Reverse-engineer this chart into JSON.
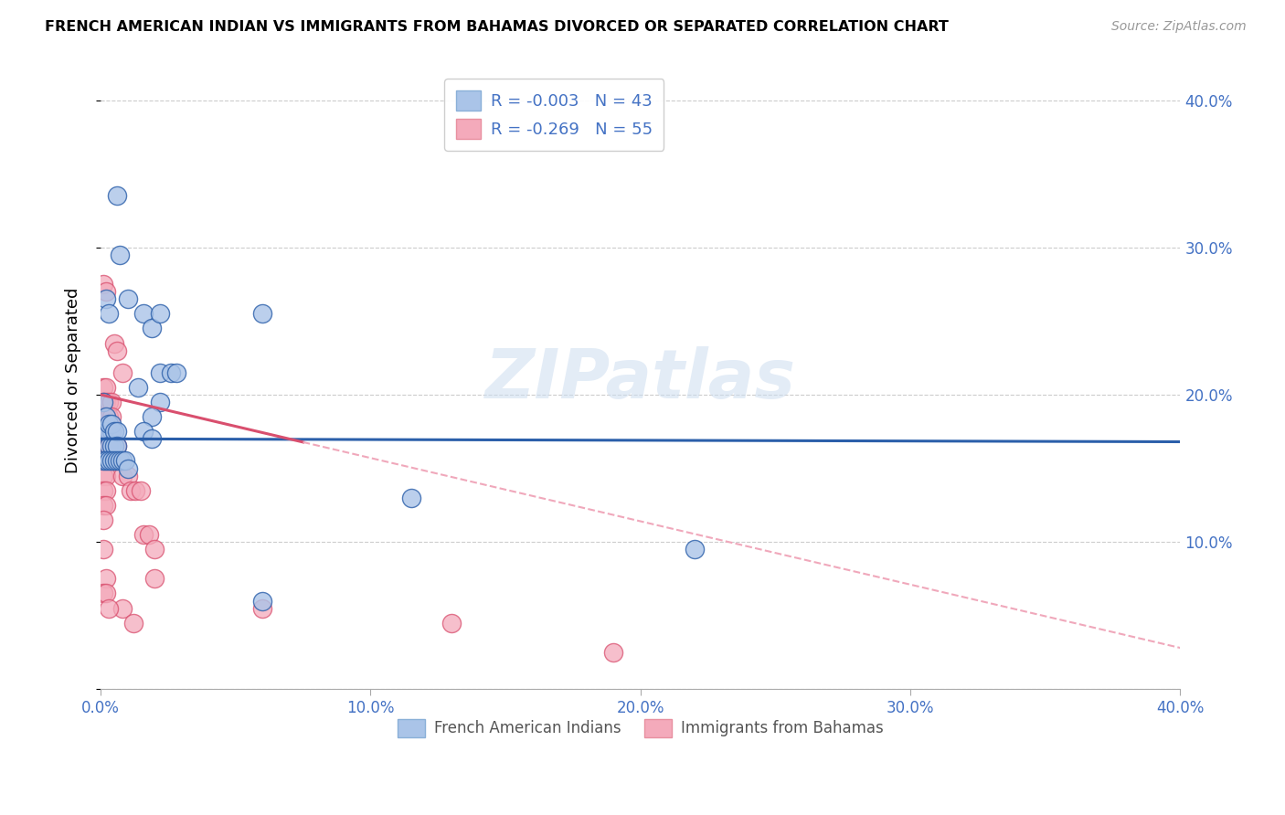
{
  "title": "FRENCH AMERICAN INDIAN VS IMMIGRANTS FROM BAHAMAS DIVORCED OR SEPARATED CORRELATION CHART",
  "source": "Source: ZipAtlas.com",
  "ylabel": "Divorced or Separated",
  "legend_label1": "French American Indians",
  "legend_label2": "Immigrants from Bahamas",
  "r1": "-0.003",
  "n1": "43",
  "r2": "-0.269",
  "n2": "55",
  "xlim": [
    0.0,
    0.4
  ],
  "ylim": [
    0.0,
    0.42
  ],
  "color_blue": "#aac4e8",
  "color_pink": "#f4aabb",
  "line_blue": "#2b5faa",
  "line_pink": "#d94f6e",
  "line_pink_dash": "#f0a8bb",
  "watermark": "ZIPatlas",
  "blue_scatter": [
    [
      0.006,
      0.335
    ],
    [
      0.007,
      0.295
    ],
    [
      0.01,
      0.265
    ],
    [
      0.002,
      0.265
    ],
    [
      0.003,
      0.255
    ],
    [
      0.016,
      0.255
    ],
    [
      0.019,
      0.245
    ],
    [
      0.022,
      0.255
    ],
    [
      0.06,
      0.255
    ],
    [
      0.022,
      0.215
    ],
    [
      0.026,
      0.215
    ],
    [
      0.028,
      0.215
    ],
    [
      0.014,
      0.205
    ],
    [
      0.022,
      0.195
    ],
    [
      0.019,
      0.185
    ],
    [
      0.016,
      0.175
    ],
    [
      0.003,
      0.175
    ],
    [
      0.004,
      0.175
    ],
    [
      0.019,
      0.17
    ],
    [
      0.001,
      0.195
    ],
    [
      0.001,
      0.175
    ],
    [
      0.002,
      0.185
    ],
    [
      0.003,
      0.18
    ],
    [
      0.003,
      0.165
    ],
    [
      0.004,
      0.18
    ],
    [
      0.004,
      0.165
    ],
    [
      0.005,
      0.175
    ],
    [
      0.005,
      0.165
    ],
    [
      0.006,
      0.175
    ],
    [
      0.006,
      0.165
    ],
    [
      0.001,
      0.155
    ],
    [
      0.002,
      0.155
    ],
    [
      0.003,
      0.155
    ],
    [
      0.004,
      0.155
    ],
    [
      0.005,
      0.155
    ],
    [
      0.006,
      0.155
    ],
    [
      0.007,
      0.155
    ],
    [
      0.008,
      0.155
    ],
    [
      0.009,
      0.155
    ],
    [
      0.01,
      0.15
    ],
    [
      0.22,
      0.095
    ],
    [
      0.115,
      0.13
    ],
    [
      0.06,
      0.06
    ]
  ],
  "pink_scatter": [
    [
      0.001,
      0.275
    ],
    [
      0.002,
      0.27
    ],
    [
      0.005,
      0.235
    ],
    [
      0.006,
      0.23
    ],
    [
      0.008,
      0.215
    ],
    [
      0.001,
      0.205
    ],
    [
      0.002,
      0.205
    ],
    [
      0.001,
      0.195
    ],
    [
      0.002,
      0.195
    ],
    [
      0.003,
      0.195
    ],
    [
      0.004,
      0.195
    ],
    [
      0.001,
      0.185
    ],
    [
      0.002,
      0.185
    ],
    [
      0.003,
      0.185
    ],
    [
      0.004,
      0.185
    ],
    [
      0.001,
      0.175
    ],
    [
      0.002,
      0.175
    ],
    [
      0.003,
      0.175
    ],
    [
      0.004,
      0.175
    ],
    [
      0.001,
      0.165
    ],
    [
      0.002,
      0.165
    ],
    [
      0.003,
      0.165
    ],
    [
      0.004,
      0.165
    ],
    [
      0.001,
      0.155
    ],
    [
      0.002,
      0.155
    ],
    [
      0.003,
      0.155
    ],
    [
      0.004,
      0.155
    ],
    [
      0.001,
      0.145
    ],
    [
      0.002,
      0.145
    ],
    [
      0.001,
      0.135
    ],
    [
      0.002,
      0.135
    ],
    [
      0.001,
      0.125
    ],
    [
      0.002,
      0.125
    ],
    [
      0.001,
      0.115
    ],
    [
      0.006,
      0.165
    ],
    [
      0.007,
      0.155
    ],
    [
      0.008,
      0.145
    ],
    [
      0.01,
      0.145
    ],
    [
      0.011,
      0.135
    ],
    [
      0.013,
      0.135
    ],
    [
      0.015,
      0.135
    ],
    [
      0.016,
      0.105
    ],
    [
      0.018,
      0.105
    ],
    [
      0.02,
      0.095
    ],
    [
      0.02,
      0.075
    ],
    [
      0.001,
      0.095
    ],
    [
      0.002,
      0.075
    ],
    [
      0.008,
      0.055
    ],
    [
      0.012,
      0.045
    ],
    [
      0.06,
      0.055
    ],
    [
      0.13,
      0.045
    ],
    [
      0.19,
      0.025
    ],
    [
      0.001,
      0.065
    ],
    [
      0.002,
      0.065
    ],
    [
      0.003,
      0.055
    ]
  ],
  "blue_trend_x": [
    0.0,
    0.4
  ],
  "blue_trend_y": [
    0.17,
    0.168
  ],
  "pink_trend_x": [
    0.0,
    0.4
  ],
  "pink_trend_y": [
    0.2,
    0.028
  ]
}
